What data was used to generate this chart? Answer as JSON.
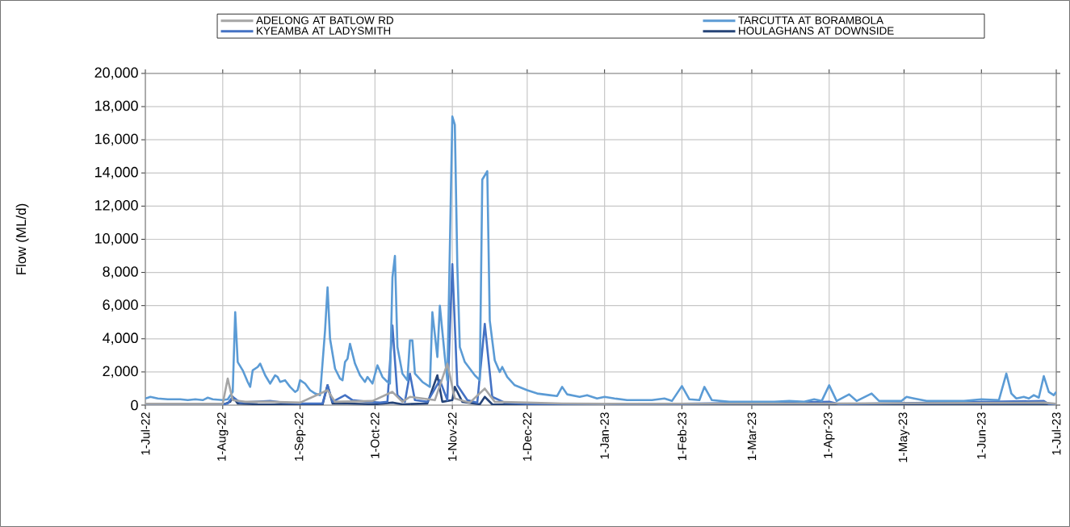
{
  "chart_data": {
    "type": "line",
    "ylabel": "Flow (ML/d)",
    "legend": "top",
    "grid": true,
    "xlim": [
      "2022-07-01",
      "2023-07-01"
    ],
    "xticks": [
      {
        "value": "2022-07-01",
        "label": "1-Jul-22"
      },
      {
        "value": "2022-08-01",
        "label": "1-Aug-22"
      },
      {
        "value": "2022-09-01",
        "label": "1-Sep-22"
      },
      {
        "value": "2022-10-01",
        "label": "1-Oct-22"
      },
      {
        "value": "2022-11-01",
        "label": "1-Nov-22"
      },
      {
        "value": "2022-12-01",
        "label": "1-Dec-22"
      },
      {
        "value": "2023-01-01",
        "label": "1-Jan-23"
      },
      {
        "value": "2023-02-01",
        "label": "1-Feb-23"
      },
      {
        "value": "2023-03-01",
        "label": "1-Mar-23"
      },
      {
        "value": "2023-04-01",
        "label": "1-Apr-23"
      },
      {
        "value": "2023-05-01",
        "label": "1-May-23"
      },
      {
        "value": "2023-06-01",
        "label": "1-Jun-23"
      },
      {
        "value": "2023-07-01",
        "label": "1-Jul-23"
      }
    ],
    "ylim": [
      0,
      20000
    ],
    "yticks": [
      0,
      {
        "value": 2000,
        "label": "2,000"
      },
      {
        "value": 4000,
        "label": "4,000"
      },
      {
        "value": 6000,
        "label": "6,000"
      },
      {
        "value": 8000,
        "label": "8,000"
      },
      {
        "value": 10000,
        "label": "10,000"
      },
      {
        "value": 12000,
        "label": "12,000"
      },
      {
        "value": 14000,
        "label": "14,000"
      },
      {
        "value": 16000,
        "label": "16,000"
      },
      {
        "value": 18000,
        "label": "18,000"
      },
      {
        "value": 20000,
        "label": "20,000"
      }
    ],
    "series": [
      {
        "name": "ADELONG  AT BATLOW RD",
        "color": "#a5a5a5",
        "x": [
          "2022-07-01",
          "2022-08-01",
          "2022-08-03",
          "2022-08-05",
          "2022-08-10",
          "2022-08-20",
          "2022-09-01",
          "2022-09-12",
          "2022-09-15",
          "2022-09-30",
          "2022-10-08",
          "2022-10-12",
          "2022-10-15",
          "2022-10-25",
          "2022-10-30",
          "2022-11-02",
          "2022-11-08",
          "2022-11-14",
          "2022-11-18",
          "2022-12-01",
          "2022-12-15",
          "2023-01-01",
          "2023-03-30",
          "2023-06-26",
          "2023-07-01"
        ],
        "values": [
          80,
          80,
          1600,
          300,
          200,
          200,
          150,
          900,
          200,
          250,
          800,
          200,
          500,
          300,
          2500,
          400,
          150,
          1000,
          200,
          150,
          100,
          80,
          100,
          150,
          80
        ]
      },
      {
        "name": "TARCUTTA  AT BORAMBOLA",
        "color": "#5b9bd5",
        "x": [
          "2022-07-01",
          "2022-07-03",
          "2022-07-06",
          "2022-07-10",
          "2022-07-15",
          "2022-07-18",
          "2022-07-21",
          "2022-07-24",
          "2022-07-26",
          "2022-07-28",
          "2022-08-01",
          "2022-08-03",
          "2022-08-05",
          "2022-08-06",
          "2022-08-07",
          "2022-08-09",
          "2022-08-11",
          "2022-08-12",
          "2022-08-13",
          "2022-08-15",
          "2022-08-16",
          "2022-08-18",
          "2022-08-20",
          "2022-08-22",
          "2022-08-23",
          "2022-08-24",
          "2022-08-26",
          "2022-08-28",
          "2022-08-30",
          "2022-08-31",
          "2022-09-01",
          "2022-09-03",
          "2022-09-05",
          "2022-09-07",
          "2022-09-09",
          "2022-09-11",
          "2022-09-12",
          "2022-09-13",
          "2022-09-15",
          "2022-09-17",
          "2022-09-18",
          "2022-09-19",
          "2022-09-20",
          "2022-09-21",
          "2022-09-23",
          "2022-09-25",
          "2022-09-27",
          "2022-09-28",
          "2022-09-30",
          "2022-10-02",
          "2022-10-04",
          "2022-10-06",
          "2022-10-07",
          "2022-10-08",
          "2022-10-09",
          "2022-10-10",
          "2022-10-12",
          "2022-10-14",
          "2022-10-15",
          "2022-10-16",
          "2022-10-17",
          "2022-10-20",
          "2022-10-23",
          "2022-10-24",
          "2022-10-26",
          "2022-10-27",
          "2022-10-29",
          "2022-10-30",
          "2022-11-01",
          "2022-11-02",
          "2022-11-03",
          "2022-11-04",
          "2022-11-06",
          "2022-11-08",
          "2022-11-10",
          "2022-11-12",
          "2022-11-13",
          "2022-11-15",
          "2022-11-16",
          "2022-11-18",
          "2022-11-20",
          "2022-11-21",
          "2022-11-23",
          "2022-11-26",
          "2022-12-01",
          "2022-12-05",
          "2022-12-10",
          "2022-12-13",
          "2022-12-15",
          "2022-12-17",
          "2022-12-22",
          "2022-12-25",
          "2022-12-29",
          "2023-01-01",
          "2023-01-05",
          "2023-01-10",
          "2023-01-15",
          "2023-01-20",
          "2023-01-25",
          "2023-01-28",
          "2023-02-01",
          "2023-02-04",
          "2023-02-08",
          "2023-02-10",
          "2023-02-13",
          "2023-02-20",
          "2023-03-10",
          "2023-03-16",
          "2023-03-22",
          "2023-03-26",
          "2023-03-29",
          "2023-04-01",
          "2023-04-04",
          "2023-04-09",
          "2023-04-12",
          "2023-04-18",
          "2023-04-21",
          "2023-04-30",
          "2023-05-02",
          "2023-05-05",
          "2023-05-10",
          "2023-05-25",
          "2023-06-01",
          "2023-06-08",
          "2023-06-11",
          "2023-06-13",
          "2023-06-15",
          "2023-06-18",
          "2023-06-20",
          "2023-06-22",
          "2023-06-24",
          "2023-06-26",
          "2023-06-28",
          "2023-06-30",
          "2023-07-01"
        ],
        "values": [
          400,
          500,
          400,
          350,
          350,
          300,
          350,
          300,
          450,
          350,
          300,
          350,
          800,
          5600,
          2600,
          2100,
          1400,
          1100,
          2100,
          2300,
          2500,
          1800,
          1300,
          1800,
          1700,
          1400,
          1500,
          1100,
          800,
          900,
          1500,
          1300,
          900,
          700,
          600,
          4500,
          7100,
          4000,
          2200,
          1600,
          1500,
          2600,
          2800,
          3700,
          2500,
          1800,
          1400,
          1700,
          1300,
          2400,
          1700,
          1400,
          1300,
          7700,
          9000,
          3500,
          1900,
          1500,
          3900,
          3900,
          1900,
          1400,
          1100,
          5600,
          2900,
          6000,
          2900,
          1500,
          17400,
          16900,
          8400,
          3500,
          2600,
          2200,
          1800,
          1500,
          13600,
          14100,
          5100,
          2700,
          2000,
          2300,
          1700,
          1200,
          900,
          700,
          600,
          550,
          1100,
          650,
          500,
          600,
          400,
          500,
          400,
          300,
          300,
          300,
          400,
          250,
          1150,
          350,
          300,
          1100,
          300,
          200,
          200,
          250,
          200,
          350,
          250,
          1200,
          250,
          650,
          250,
          700,
          250,
          250,
          500,
          400,
          250,
          250,
          350,
          300,
          1900,
          700,
          400,
          500,
          400,
          600,
          450,
          1750,
          800,
          600,
          800
        ]
      },
      {
        "name": "KYEAMBA  AT LADYSMITH",
        "color": "#4472c4",
        "x": [
          "2022-07-01",
          "2022-08-01",
          "2022-08-03",
          "2022-08-05",
          "2022-08-08",
          "2022-08-14",
          "2022-08-20",
          "2022-08-25",
          "2022-09-01",
          "2022-09-10",
          "2022-09-12",
          "2022-09-14",
          "2022-09-19",
          "2022-09-22",
          "2022-09-28",
          "2022-10-03",
          "2022-10-06",
          "2022-10-08",
          "2022-10-10",
          "2022-10-13",
          "2022-10-15",
          "2022-10-17",
          "2022-10-22",
          "2022-10-27",
          "2022-10-30",
          "2022-11-01",
          "2022-11-03",
          "2022-11-07",
          "2022-11-11",
          "2022-11-14",
          "2022-11-17",
          "2022-11-22",
          "2022-12-01",
          "2023-01-01",
          "2023-02-01",
          "2023-04-01",
          "2023-04-05",
          "2023-06-26",
          "2023-06-28",
          "2023-07-01"
        ],
        "values": [
          50,
          50,
          100,
          500,
          150,
          200,
          250,
          150,
          100,
          100,
          1200,
          200,
          600,
          300,
          200,
          150,
          200,
          4800,
          600,
          200,
          1900,
          300,
          200,
          1500,
          300,
          8500,
          1200,
          300,
          150,
          4900,
          500,
          150,
          80,
          50,
          80,
          200,
          60,
          250,
          60,
          50
        ]
      },
      {
        "name": "HOULAGHANS  AT DOWNSIDE",
        "color": "#264478",
        "x": [
          "2022-07-01",
          "2022-08-01",
          "2022-08-04",
          "2022-08-05",
          "2022-08-07",
          "2022-08-15",
          "2022-09-10",
          "2022-09-12",
          "2022-09-14",
          "2022-09-20",
          "2022-10-01",
          "2022-10-08",
          "2022-10-12",
          "2022-10-22",
          "2022-10-26",
          "2022-10-28",
          "2022-11-01",
          "2022-11-02",
          "2022-11-05",
          "2022-11-12",
          "2022-11-14",
          "2022-11-17",
          "2022-12-01",
          "2023-07-01"
        ],
        "values": [
          20,
          20,
          200,
          500,
          100,
          50,
          30,
          1200,
          100,
          100,
          50,
          150,
          50,
          100,
          1800,
          200,
          300,
          1100,
          200,
          50,
          500,
          50,
          20,
          20
        ]
      }
    ]
  }
}
